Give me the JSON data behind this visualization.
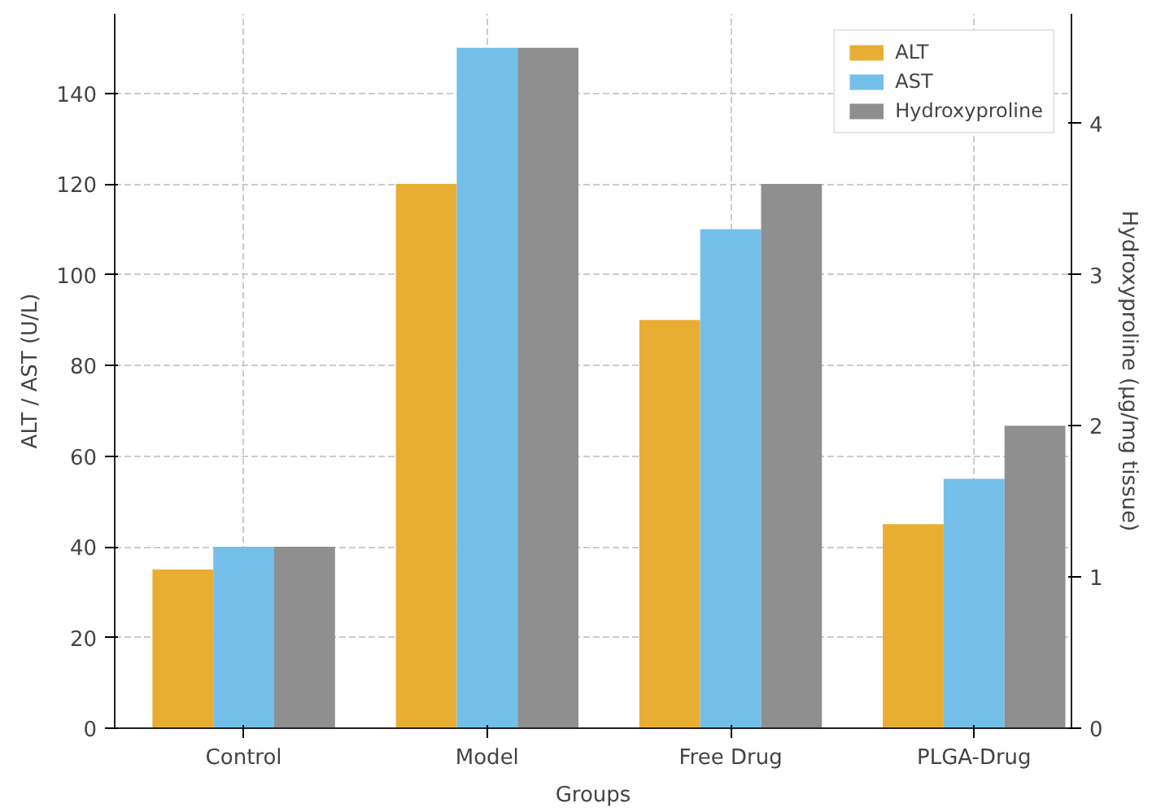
{
  "chart_data": {
    "type": "bar",
    "xlabel": "Groups",
    "ylabel": "ALT / AST (U/L)",
    "y2label": "Hydroxyproline (μg/mg tissue)",
    "categories": [
      "Control",
      "Model",
      "Free Drug",
      "PLGA-Drug"
    ],
    "series": [
      {
        "name": "ALT",
        "color": "#e8ae33",
        "values": [
          35,
          120,
          90,
          45
        ]
      },
      {
        "name": "AST",
        "color": "#74bfe9",
        "values": [
          40,
          150,
          110,
          55
        ]
      },
      {
        "name": "Hydroxyproline",
        "color": "#8f8f8f",
        "values": [
          1.2,
          4.5,
          3.6,
          2.0
        ],
        "axis": "y2"
      }
    ],
    "ylim": [
      0,
      157.5
    ],
    "yticks": [
      0,
      20,
      40,
      60,
      80,
      100,
      120,
      140
    ],
    "y2lim": [
      0,
      4.725
    ],
    "y2ticks": [
      0,
      1,
      2,
      3,
      4
    ],
    "grid": true,
    "legend": "top right"
  }
}
